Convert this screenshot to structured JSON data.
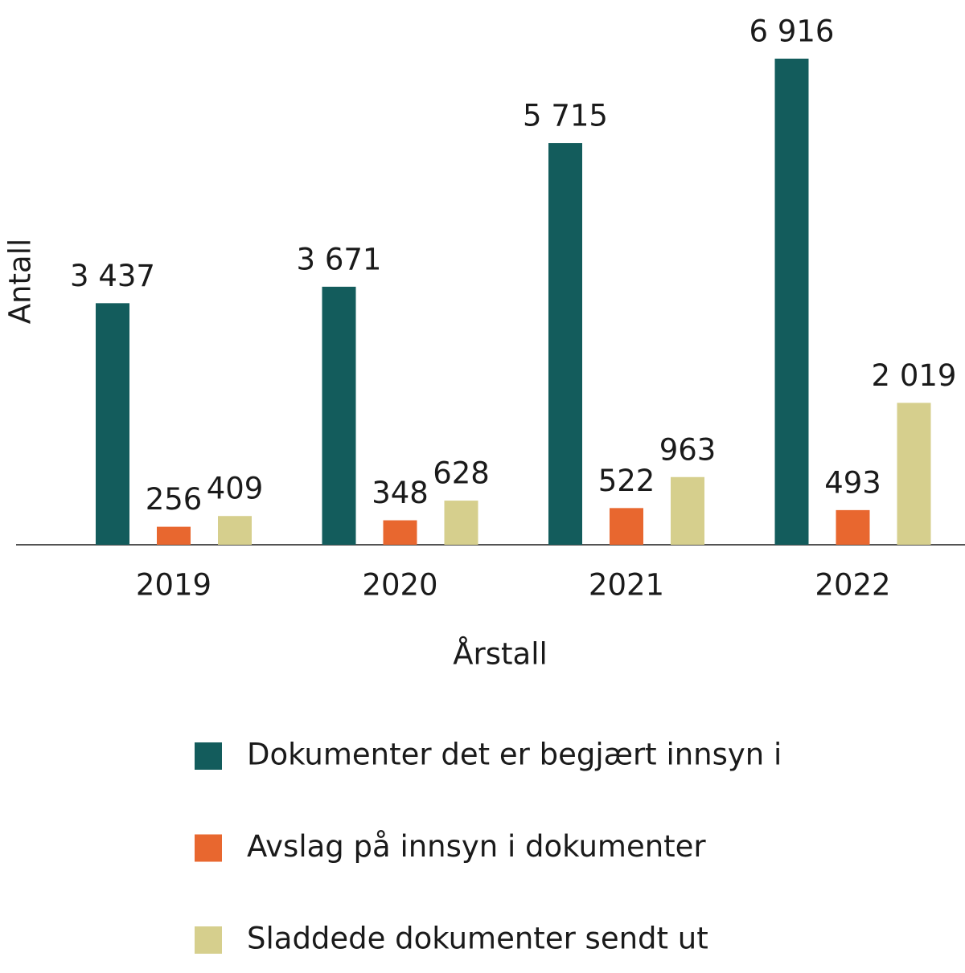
{
  "chart_data": {
    "type": "bar",
    "categories": [
      "2019",
      "2020",
      "2021",
      "2022"
    ],
    "x_label": "Årstall",
    "y_label": "Antall",
    "series": [
      {
        "name": "Dokumenter det er begjært innsyn i",
        "color": "#135c5c",
        "values": [
          3437,
          3671,
          5715,
          6916
        ],
        "value_labels": [
          "3 437",
          "3 671",
          "5 715",
          "6 916"
        ]
      },
      {
        "name": "Avslag på innsyn i dokumenter",
        "color": "#e8672f",
        "values": [
          256,
          348,
          522,
          493
        ],
        "value_labels": [
          "256",
          "348",
          "522",
          "493"
        ]
      },
      {
        "name": "Sladdede dokumenter sendt ut",
        "color": "#d6cf8d",
        "values": [
          409,
          628,
          963,
          2019
        ],
        "value_labels": [
          "409",
          "628",
          "963",
          "2 019"
        ]
      }
    ],
    "legend": "bottom"
  }
}
